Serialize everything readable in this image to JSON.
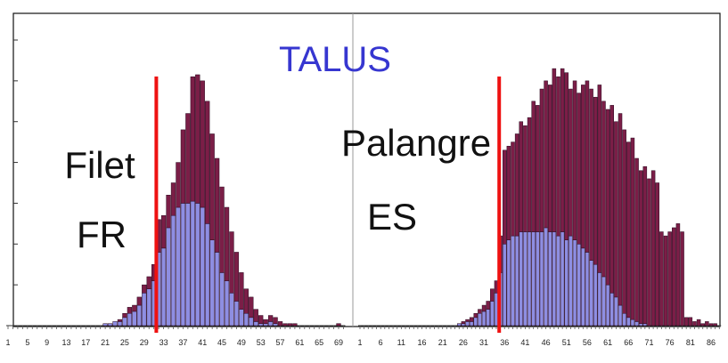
{
  "title": "TALUS",
  "chart_data": [
    {
      "type": "bar",
      "stacked": true,
      "annotations": [
        "Filet",
        "FR"
      ],
      "categories": [
        1,
        null,
        null,
        null,
        5,
        null,
        null,
        null,
        9,
        null,
        null,
        null,
        13,
        null,
        null,
        null,
        17,
        null,
        null,
        null,
        21,
        null,
        null,
        null,
        25,
        null,
        null,
        null,
        29,
        null,
        null,
        null,
        33,
        null,
        null,
        null,
        37,
        null,
        null,
        null,
        41,
        null,
        null,
        null,
        45,
        null,
        null,
        null,
        49,
        null,
        null,
        null,
        53,
        null,
        null,
        null,
        57,
        null,
        null,
        null,
        61,
        null,
        null,
        null,
        65,
        null,
        null,
        null,
        69,
        null
      ],
      "series": [
        {
          "color": "#8e8ee2",
          "values": [
            0,
            0,
            0,
            0,
            0,
            0,
            0,
            0,
            0,
            0,
            0,
            0,
            0,
            0,
            0,
            0,
            0,
            0,
            0,
            0,
            0.05,
            0.05,
            0.1,
            0.1,
            0.2,
            0.3,
            0.35,
            0.5,
            0.8,
            0.9,
            1.1,
            1.8,
            1.9,
            2.4,
            2.7,
            2.9,
            3.0,
            3.0,
            3.05,
            3.0,
            2.9,
            2.5,
            2.1,
            1.8,
            1.3,
            1.1,
            0.8,
            0.6,
            0.4,
            0.3,
            0.2,
            0.1,
            0.05,
            0.05,
            0.1,
            0.05,
            0,
            0,
            0,
            0,
            0,
            0,
            0,
            0,
            0,
            0,
            0,
            0,
            0,
            0
          ]
        },
        {
          "color": "#7b1e47",
          "values": [
            0,
            0,
            0,
            0,
            0,
            0,
            0,
            0,
            0,
            0,
            0,
            0,
            0,
            0,
            0,
            0,
            0,
            0,
            0,
            0,
            0,
            0,
            0,
            0.05,
            0.1,
            0.15,
            0.15,
            0.2,
            0.2,
            0.3,
            0.4,
            0.8,
            0.8,
            0.8,
            0.8,
            1.1,
            1.8,
            2.2,
            3.05,
            3.15,
            3.1,
            3.0,
            2.6,
            2.3,
            2.1,
            1.8,
            1.5,
            1.2,
            0.9,
            0.6,
            0.5,
            0.3,
            0.2,
            0.1,
            0.15,
            0.15,
            0.1,
            0.05,
            0.05,
            0.05,
            0,
            0,
            0,
            0,
            0,
            0,
            0,
            0,
            0.05,
            0
          ]
        }
      ],
      "ylim": [
        0,
        7
      ],
      "yticks": [
        0,
        1,
        2,
        3,
        4,
        5,
        6,
        7
      ],
      "reference_line": {
        "x": 31.5,
        "color": "#ee1111"
      }
    },
    {
      "type": "bar",
      "stacked": true,
      "annotations": [
        "Palangre",
        "ES"
      ],
      "categories": [
        1,
        null,
        null,
        null,
        null,
        6,
        null,
        null,
        null,
        null,
        11,
        null,
        null,
        null,
        null,
        16,
        null,
        null,
        null,
        null,
        21,
        null,
        null,
        null,
        null,
        26,
        null,
        null,
        null,
        null,
        31,
        null,
        null,
        null,
        null,
        36,
        null,
        null,
        null,
        null,
        41,
        null,
        null,
        null,
        null,
        46,
        null,
        null,
        null,
        null,
        51,
        null,
        null,
        null,
        null,
        56,
        null,
        null,
        null,
        null,
        61,
        null,
        null,
        null,
        null,
        66,
        null,
        null,
        null,
        null,
        71,
        null,
        null,
        null,
        null,
        76,
        null,
        null,
        null,
        null,
        81,
        null,
        null,
        null,
        null,
        86,
        null,
        null
      ],
      "series": [
        {
          "color": "#8e8ee2",
          "values": [
            0,
            0,
            0,
            0,
            0,
            0,
            0,
            0,
            0,
            0,
            0,
            0,
            0,
            0,
            0,
            0,
            0,
            0,
            0,
            0,
            0,
            0,
            0,
            0,
            0.05,
            0.05,
            0.1,
            0.1,
            0.2,
            0.3,
            0.35,
            0.4,
            0.6,
            0.8,
            1.3,
            2.0,
            2.1,
            2.2,
            2.2,
            2.3,
            2.3,
            2.3,
            2.3,
            2.3,
            2.3,
            2.4,
            2.3,
            2.3,
            2.2,
            2.3,
            2.1,
            2.2,
            2.1,
            2.0,
            1.9,
            1.8,
            1.6,
            1.5,
            1.3,
            1.2,
            1.0,
            0.8,
            0.7,
            0.5,
            0.3,
            0.2,
            0.15,
            0.1,
            0.05,
            0.05,
            0,
            0,
            0,
            0,
            0,
            0,
            0,
            0,
            0,
            0,
            0,
            0,
            0,
            0,
            0,
            0,
            0,
            0
          ]
        },
        {
          "color": "#7b1e47",
          "values": [
            0,
            0,
            0,
            0,
            0,
            0,
            0,
            0,
            0,
            0,
            0,
            0,
            0,
            0,
            0,
            0,
            0,
            0,
            0,
            0,
            0,
            0,
            0,
            0,
            0,
            0.05,
            0.05,
            0.1,
            0.1,
            0.1,
            0.15,
            0.2,
            0.3,
            0.3,
            0.9,
            2.3,
            2.3,
            2.3,
            2.5,
            2.7,
            2.6,
            2.8,
            3.2,
            3.1,
            3.5,
            3.6,
            3.6,
            4.0,
            3.9,
            4.0,
            4.1,
            3.6,
            3.9,
            3.7,
            4.0,
            4.2,
            4.2,
            4.1,
            4.6,
            4.3,
            4.3,
            4.6,
            4.3,
            4.7,
            4.5,
            4.3,
            4.45,
            4.0,
            3.75,
            3.85,
            3.6,
            3.8,
            3.5,
            2.3,
            2.2,
            2.3,
            2.4,
            2.5,
            2.3,
            0.2,
            0.2,
            0.1,
            0.15,
            0.05,
            0.1,
            0.05,
            0.05,
            0
          ]
        }
      ],
      "ylim": [
        0,
        7
      ],
      "reference_line": {
        "x": 34.7,
        "color": "#ee1111"
      }
    }
  ]
}
